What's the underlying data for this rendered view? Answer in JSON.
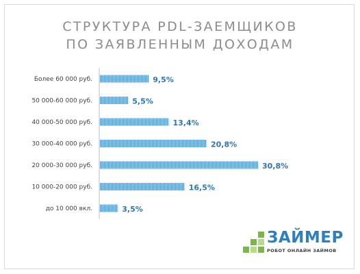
{
  "chart_data": {
    "type": "bar",
    "orientation": "horizontal",
    "title": "СТРУКТУРА PDL-ЗАЕМЩИКОВ ПО ЗАЯВЛЕННЫМ ДОХОДАМ",
    "title_lines": [
      "СТРУКТУРА PDL-ЗАЕМЩИКОВ",
      "ПО ЗАЯВЛЕННЫМ ДОХОДАМ"
    ],
    "categories": [
      "Более 60 000 руб.",
      "50 000-60 000 руб.",
      "40 000-50 000 руб.",
      "30 000-40 000 руб.",
      "20 000-30 000 руб.",
      "10 000-20 000 руб.",
      "до 10 000 вкл."
    ],
    "values": [
      9.5,
      5.5,
      13.4,
      20.8,
      30.8,
      16.5,
      3.5
    ],
    "labels": [
      "9,5%",
      "5,5%",
      "13,4%",
      "20,8%",
      "30,8%",
      "16,5%",
      "3,5%"
    ],
    "unit": "%",
    "xlim": [
      0,
      34
    ],
    "grid": false,
    "legend": "none",
    "bar_color": "#4a8fd1"
  },
  "brand": {
    "name": "ЗАЙМЕР",
    "tagline": "РОБОТ ОНЛАЙН ЗАЙМОВ",
    "colors": {
      "primary": "#2d7fc1",
      "green": "#7ab648",
      "light_green": "#b7d98b"
    }
  }
}
